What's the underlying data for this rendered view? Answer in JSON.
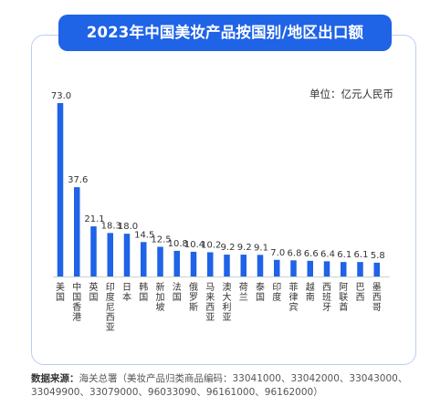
{
  "chart_data": {
    "type": "bar",
    "title": "2023年中国美妆产品按国别/地区出口额",
    "unit_label": "单位：亿元人民币",
    "categories": [
      "美国",
      "中国香港",
      "英国",
      "印度尼西亚",
      "日本",
      "韩国",
      "新加坡",
      "法国",
      "俄罗斯",
      "马来西亚",
      "澳大利亚",
      "荷兰",
      "泰国",
      "印度",
      "菲律宾",
      "越南",
      "西班牙",
      "阿联酋",
      "巴西",
      "墨西哥"
    ],
    "values": [
      73.0,
      37.6,
      21.1,
      18.3,
      18.0,
      14.5,
      12.5,
      10.8,
      10.4,
      10.2,
      9.2,
      9.2,
      9.1,
      7.0,
      6.8,
      6.6,
      6.4,
      6.1,
      6.1,
      5.8
    ],
    "value_labels": [
      "73.0",
      "37.6",
      "21.1",
      "18.3",
      "18.0",
      "14.5",
      "12.5",
      "10.8",
      "10.4",
      "10.2",
      "9.2",
      "9.2",
      "9.1",
      "7.0",
      "6.8",
      "6.6",
      "6.4",
      "6.1",
      "6.1",
      "5.8"
    ],
    "bar_color": "#1f63e6",
    "ylim": [
      0,
      73
    ]
  },
  "source": {
    "prefix": "数据来源：",
    "text": "海关总署（美妆产品归类商品编码：33041000、33042000、33043000、33049900、33079000、96033090、96161000、96162000）"
  }
}
